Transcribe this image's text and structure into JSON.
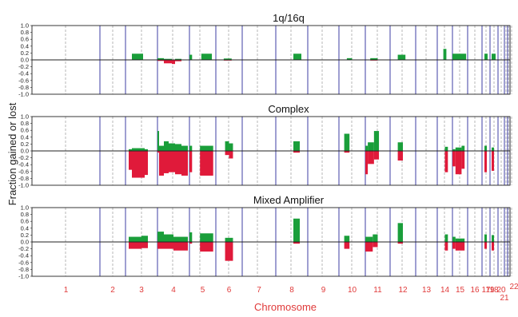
{
  "chart_data": {
    "type": "bar",
    "ylabel": "Fraction gained or lost",
    "xlabel": "Chromosome",
    "ylim": [
      -1.0,
      1.0
    ],
    "yticks": [
      "1.0",
      "0.8",
      "0.6",
      "0.4",
      "0.2",
      "0.0",
      "-0.2",
      "-0.4",
      "-0.6",
      "-0.8",
      "-1.0"
    ],
    "chromosomes": [
      "1",
      "2",
      "3",
      "4",
      "5",
      "6",
      "7",
      "8",
      "9",
      "10",
      "11",
      "12",
      "13",
      "14",
      "15",
      "16",
      "17",
      "18",
      "19",
      "20",
      "21",
      "22"
    ],
    "colors": {
      "gain": "#1a9e3a",
      "loss": "#e01a3a",
      "boundary": "#2a2a9a",
      "centromere": "#888888",
      "axis_label": "#e03a3a"
    },
    "panels": [
      {
        "title": "1q/16q",
        "series": [
          {
            "chrom": 3,
            "from": 0.2,
            "to": 0.55,
            "gain": 0.18,
            "loss": 0
          },
          {
            "chrom": 4,
            "from": 0.0,
            "to": 0.2,
            "gain": 0.05,
            "loss": 0.03
          },
          {
            "chrom": 4,
            "from": 0.2,
            "to": 0.45,
            "gain": 0.03,
            "loss": 0.1
          },
          {
            "chrom": 4,
            "from": 0.45,
            "to": 0.55,
            "gain": 0,
            "loss": 0.12
          },
          {
            "chrom": 4,
            "from": 0.55,
            "to": 0.75,
            "gain": 0.03,
            "loss": 0.04
          },
          {
            "chrom": 5,
            "from": 0.0,
            "to": 0.1,
            "gain": 0.15,
            "loss": 0
          },
          {
            "chrom": 5,
            "from": 0.45,
            "to": 0.85,
            "gain": 0.18,
            "loss": 0
          },
          {
            "chrom": 6,
            "from": 0.3,
            "to": 0.6,
            "gain": 0.04,
            "loss": 0.02
          },
          {
            "chrom": 8,
            "from": 0.55,
            "to": 0.8,
            "gain": 0.18,
            "loss": 0
          },
          {
            "chrom": 10,
            "from": 0.3,
            "to": 0.5,
            "gain": 0.05,
            "loss": 0
          },
          {
            "chrom": 11,
            "from": 0.2,
            "to": 0.5,
            "gain": 0.05,
            "loss": 0.02
          },
          {
            "chrom": 12,
            "from": 0.3,
            "to": 0.6,
            "gain": 0.15,
            "loss": 0
          },
          {
            "chrom": 14,
            "from": 0.4,
            "to": 0.6,
            "gain": 0.32,
            "loss": 0
          },
          {
            "chrom": 15,
            "from": 0.0,
            "to": 0.9,
            "gain": 0.18,
            "loss": 0
          },
          {
            "chrom": 17,
            "from": 0.3,
            "to": 0.7,
            "gain": 0.18,
            "loss": 0
          },
          {
            "chrom": 18,
            "from": 0.2,
            "to": 0.7,
            "gain": 0.18,
            "loss": 0
          }
        ]
      },
      {
        "title": "Complex",
        "series": [
          {
            "chrom": 3,
            "from": 0.1,
            "to": 0.2,
            "gain": 0.05,
            "loss": 0.55
          },
          {
            "chrom": 3,
            "from": 0.2,
            "to": 0.6,
            "gain": 0.08,
            "loss": 0.78
          },
          {
            "chrom": 3,
            "from": 0.6,
            "to": 0.7,
            "gain": 0.05,
            "loss": 0.7
          },
          {
            "chrom": 4,
            "from": 0.0,
            "to": 0.05,
            "gain": 0.58,
            "loss": 0.05
          },
          {
            "chrom": 4,
            "from": 0.05,
            "to": 0.2,
            "gain": 0.15,
            "loss": 0.72
          },
          {
            "chrom": 4,
            "from": 0.2,
            "to": 0.35,
            "gain": 0.28,
            "loss": 0.65
          },
          {
            "chrom": 4,
            "from": 0.35,
            "to": 0.55,
            "gain": 0.22,
            "loss": 0.62
          },
          {
            "chrom": 4,
            "from": 0.55,
            "to": 0.75,
            "gain": 0.2,
            "loss": 0.68
          },
          {
            "chrom": 4,
            "from": 0.75,
            "to": 0.95,
            "gain": 0.15,
            "loss": 0.72
          },
          {
            "chrom": 5,
            "from": 0.0,
            "to": 0.1,
            "gain": 0.15,
            "loss": 0.62
          },
          {
            "chrom": 5,
            "from": 0.4,
            "to": 0.9,
            "gain": 0.15,
            "loss": 0.72
          },
          {
            "chrom": 6,
            "from": 0.35,
            "to": 0.5,
            "gain": 0.28,
            "loss": 0.12
          },
          {
            "chrom": 6,
            "from": 0.5,
            "to": 0.65,
            "gain": 0.22,
            "loss": 0.22
          },
          {
            "chrom": 8,
            "from": 0.55,
            "to": 0.75,
            "gain": 0.28,
            "loss": 0.05
          },
          {
            "chrom": 10,
            "from": 0.2,
            "to": 0.4,
            "gain": 0.5,
            "loss": 0.05
          },
          {
            "chrom": 11,
            "from": 0.0,
            "to": 0.1,
            "gain": 0.15,
            "loss": 0.68
          },
          {
            "chrom": 11,
            "from": 0.1,
            "to": 0.35,
            "gain": 0.25,
            "loss": 0.38
          },
          {
            "chrom": 11,
            "from": 0.35,
            "to": 0.55,
            "gain": 0.58,
            "loss": 0.25
          },
          {
            "chrom": 12,
            "from": 0.3,
            "to": 0.5,
            "gain": 0.25,
            "loss": 0.28
          },
          {
            "chrom": 14,
            "from": 0.5,
            "to": 0.7,
            "gain": 0.12,
            "loss": 0.62
          },
          {
            "chrom": 15,
            "from": 0.0,
            "to": 0.2,
            "gain": 0.05,
            "loss": 0.45
          },
          {
            "chrom": 15,
            "from": 0.2,
            "to": 0.6,
            "gain": 0.1,
            "loss": 0.68
          },
          {
            "chrom": 15,
            "from": 0.6,
            "to": 0.8,
            "gain": 0.15,
            "loss": 0.52
          },
          {
            "chrom": 17,
            "from": 0.3,
            "to": 0.6,
            "gain": 0.15,
            "loss": 0.62
          },
          {
            "chrom": 18,
            "from": 0.2,
            "to": 0.5,
            "gain": 0.1,
            "loss": 0.58
          }
        ]
      },
      {
        "title": "Mixed Amplifier",
        "series": [
          {
            "chrom": 3,
            "from": 0.1,
            "to": 0.5,
            "gain": 0.15,
            "loss": 0.2
          },
          {
            "chrom": 3,
            "from": 0.5,
            "to": 0.7,
            "gain": 0.18,
            "loss": 0.18
          },
          {
            "chrom": 4,
            "from": 0.0,
            "to": 0.2,
            "gain": 0.3,
            "loss": 0.2
          },
          {
            "chrom": 4,
            "from": 0.2,
            "to": 0.5,
            "gain": 0.22,
            "loss": 0.2
          },
          {
            "chrom": 4,
            "from": 0.5,
            "to": 0.95,
            "gain": 0.15,
            "loss": 0.25
          },
          {
            "chrom": 5,
            "from": 0.0,
            "to": 0.1,
            "gain": 0.28,
            "loss": 0.05
          },
          {
            "chrom": 5,
            "from": 0.4,
            "to": 0.9,
            "gain": 0.25,
            "loss": 0.28
          },
          {
            "chrom": 6,
            "from": 0.35,
            "to": 0.65,
            "gain": 0.12,
            "loss": 0.55
          },
          {
            "chrom": 8,
            "from": 0.55,
            "to": 0.75,
            "gain": 0.68,
            "loss": 0.05
          },
          {
            "chrom": 10,
            "from": 0.2,
            "to": 0.4,
            "gain": 0.18,
            "loss": 0.2
          },
          {
            "chrom": 11,
            "from": 0.0,
            "to": 0.3,
            "gain": 0.15,
            "loss": 0.28
          },
          {
            "chrom": 11,
            "from": 0.3,
            "to": 0.5,
            "gain": 0.22,
            "loss": 0.15
          },
          {
            "chrom": 12,
            "from": 0.3,
            "to": 0.5,
            "gain": 0.55,
            "loss": 0.05
          },
          {
            "chrom": 14,
            "from": 0.5,
            "to": 0.7,
            "gain": 0.22,
            "loss": 0.25
          },
          {
            "chrom": 15,
            "from": 0.0,
            "to": 0.2,
            "gain": 0.15,
            "loss": 0.2
          },
          {
            "chrom": 15,
            "from": 0.2,
            "to": 0.8,
            "gain": 0.1,
            "loss": 0.25
          },
          {
            "chrom": 17,
            "from": 0.3,
            "to": 0.6,
            "gain": 0.22,
            "loss": 0.2
          },
          {
            "chrom": 18,
            "from": 0.2,
            "to": 0.5,
            "gain": 0.2,
            "loss": 0.25
          }
        ]
      }
    ]
  }
}
